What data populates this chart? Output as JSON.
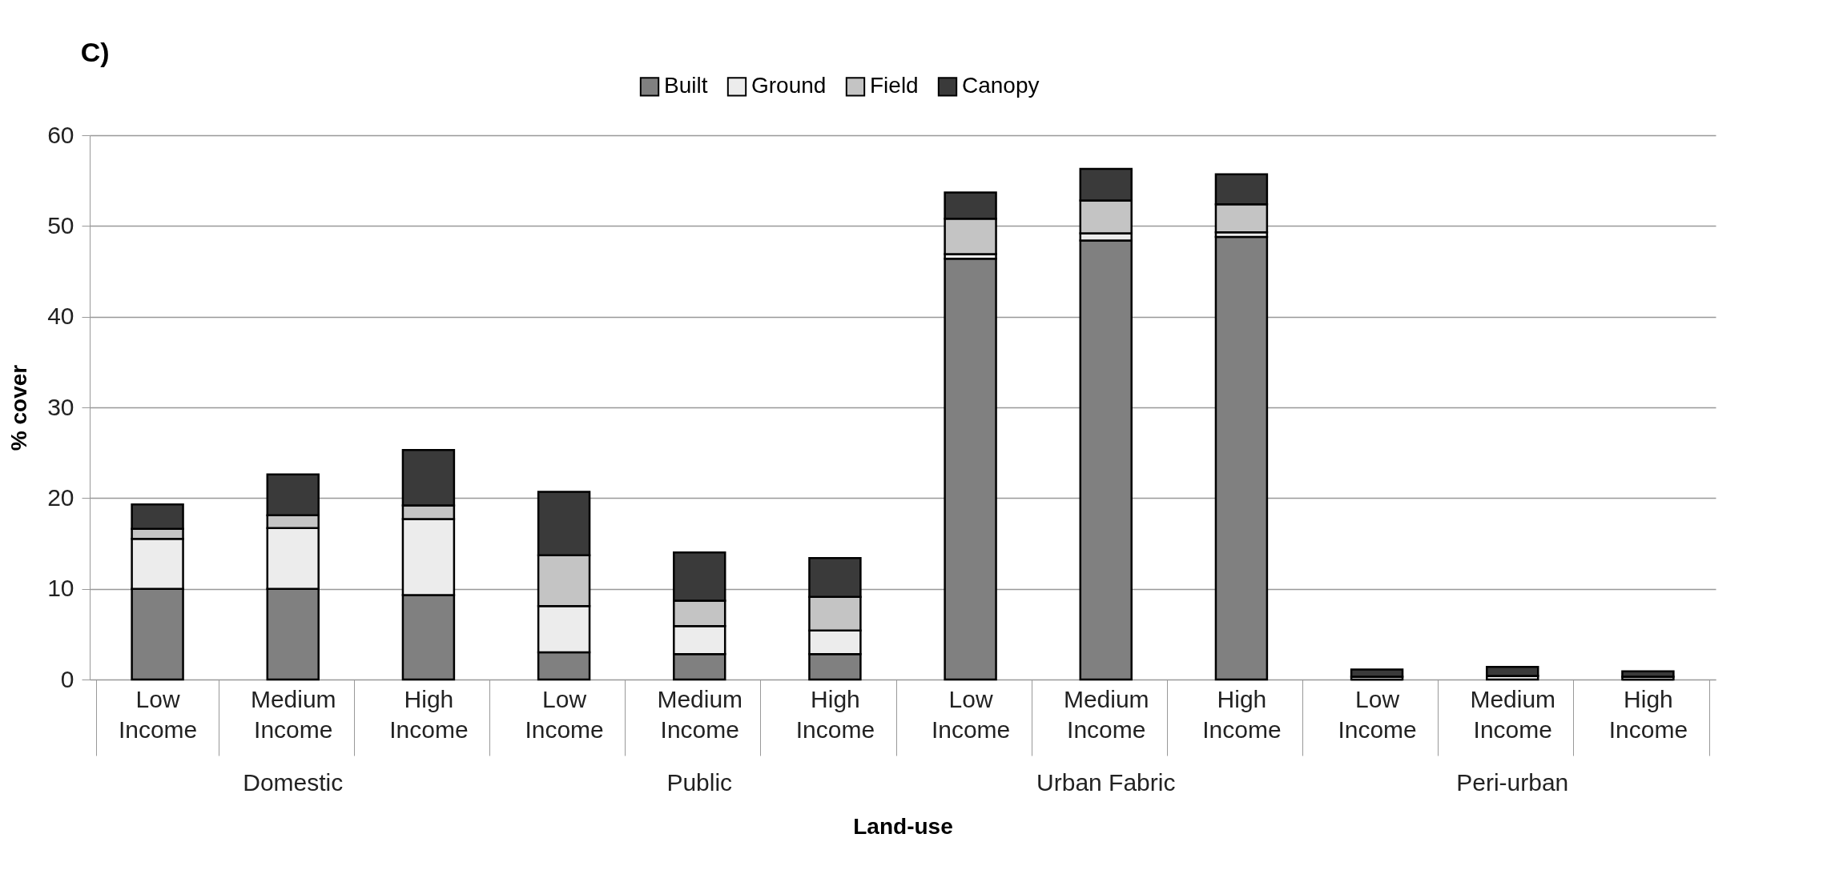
{
  "chart_data": {
    "type": "bar",
    "title": "C)",
    "xlabel": "Land-use",
    "ylabel": "% cover",
    "categories": [
      "Low Income",
      "Medium Income",
      "High Income",
      "Low Income",
      "Medium Income",
      "High Income",
      "Low Income",
      "Medium Income",
      "High Income",
      "Low Income",
      "Medium Income",
      "High Income"
    ],
    "series": [
      {
        "name": "Built",
        "color": "#808080",
        "values": [
          10.0,
          10.0,
          9.3,
          3.0,
          2.8,
          2.8,
          46.4,
          48.4,
          48.8,
          0.0,
          null,
          0.0
        ]
      },
      {
        "name": "Ground",
        "color": "#ececec",
        "values": [
          5.5,
          6.7,
          8.4,
          5.1,
          3.1,
          2.6,
          0.5,
          0.8,
          0.5,
          0.3,
          0.4,
          0.3
        ]
      },
      {
        "name": "Field",
        "color": "#c4c4c4",
        "values": [
          1.1,
          1.4,
          1.5,
          5.6,
          2.8,
          3.7,
          3.9,
          3.6,
          3.1,
          0.0,
          0.0,
          0.0
        ]
      },
      {
        "name": "Canopy",
        "color": "#3a3a3a",
        "values": [
          2.7,
          4.5,
          6.1,
          7.0,
          5.3,
          4.3,
          2.9,
          3.5,
          3.3,
          0.8,
          1.0,
          0.6
        ]
      }
    ],
    "stacked": true,
    "ylim": [
      0,
      60
    ],
    "yticks": [
      0,
      10,
      20,
      30,
      40,
      50,
      60
    ],
    "grid": "y",
    "legend": "top",
    "annotations": [
      "Domestic",
      "Public",
      "Urban Fabric",
      "Peri-urban"
    ]
  }
}
